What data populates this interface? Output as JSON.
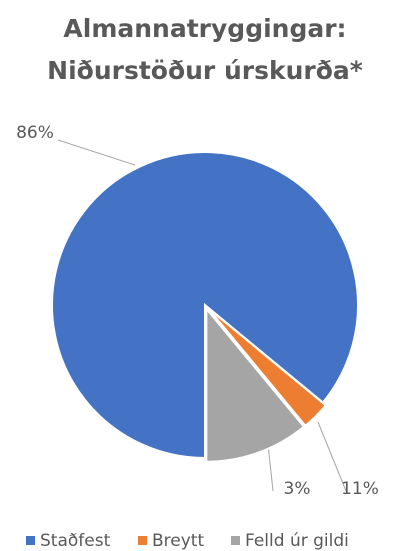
{
  "chart_data": {
    "type": "pie",
    "title": [
      "Almannatryggingar:",
      "Niðurstöður úrskurða*"
    ],
    "categories": [
      "Staðfest",
      "Breytt",
      "Felld úr gildi"
    ],
    "values": [
      86,
      3,
      11
    ],
    "value_labels": [
      "86%",
      "3%",
      "11%"
    ],
    "colors": [
      "#4472c4",
      "#ed7d31",
      "#a5a5a5"
    ],
    "legend": "bottom"
  }
}
